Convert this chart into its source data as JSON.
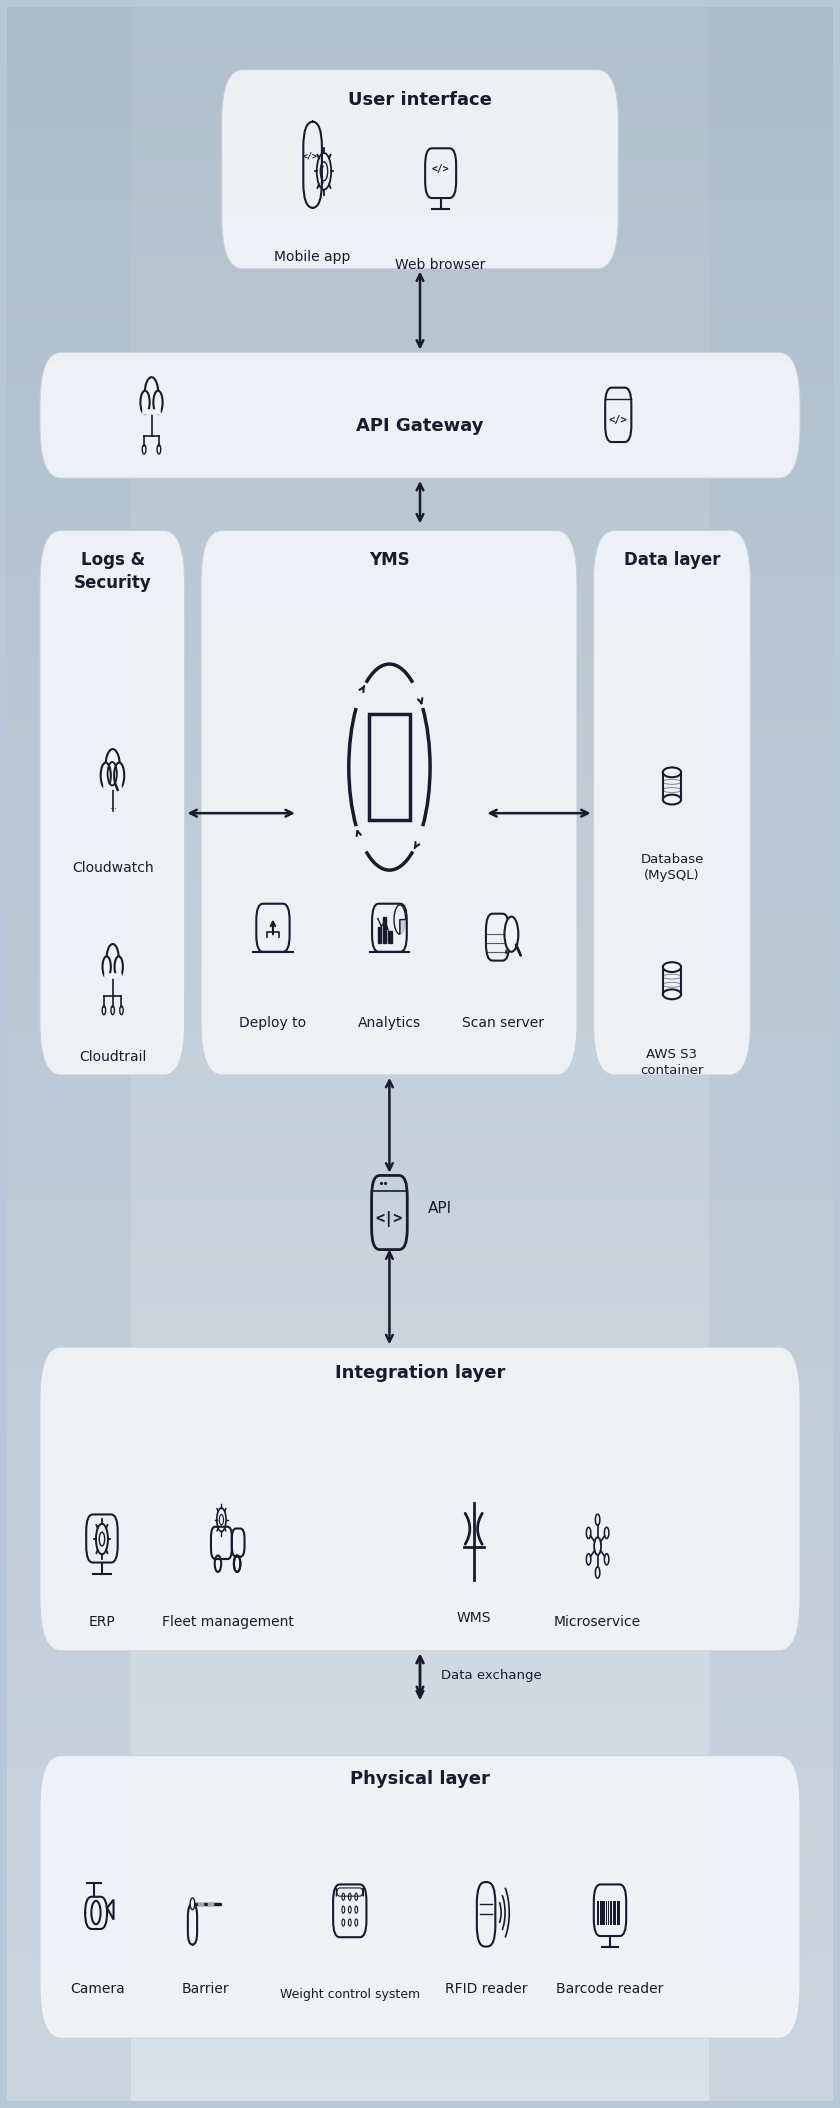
{
  "figsize": [
    8.4,
    21.08
  ],
  "dpi": 100,
  "box_fill": "#f2f4f7",
  "box_edge": "#c8d0d8",
  "text_color": "#1a1a2e",
  "arrow_color": "#1a1a2e",
  "label_fontsize": 13,
  "boxes": {
    "user_interface": [
      0.26,
      0.875,
      0.48,
      0.095
    ],
    "api_gateway": [
      0.04,
      0.775,
      0.92,
      0.06
    ],
    "logs_security": [
      0.04,
      0.49,
      0.175,
      0.26
    ],
    "yms": [
      0.235,
      0.49,
      0.455,
      0.26
    ],
    "data_layer": [
      0.71,
      0.49,
      0.19,
      0.26
    ],
    "integration": [
      0.04,
      0.215,
      0.92,
      0.145
    ],
    "physical": [
      0.04,
      0.03,
      0.92,
      0.135
    ]
  },
  "box_labels": {
    "user_interface": [
      "User interface",
      0.5,
      0.96
    ],
    "api_gateway": [
      "API Gateway",
      0.5,
      0.804
    ],
    "logs_security": [
      "Logs &\nSecurity",
      0.128,
      0.74
    ],
    "yms": [
      "YMS",
      0.463,
      0.74
    ],
    "data_layer": [
      "Data layer",
      0.805,
      0.74
    ],
    "integration": [
      "Integration layer",
      0.5,
      0.352
    ],
    "physical": [
      "Physical layer",
      0.5,
      0.158
    ]
  }
}
